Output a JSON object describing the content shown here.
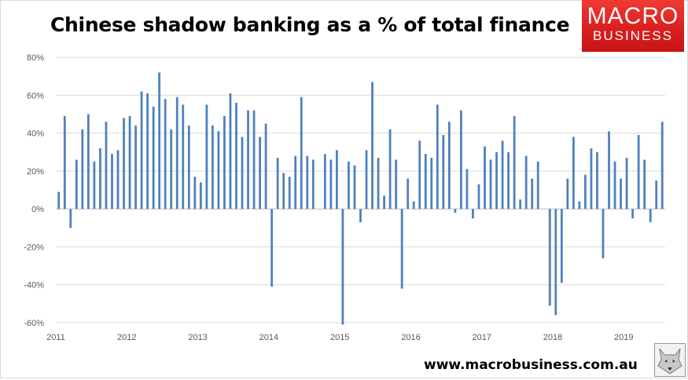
{
  "header": {
    "title": "Chinese shadow banking as a % of total finance"
  },
  "logo": {
    "line1": "MACRO",
    "line2": "BUSINESS"
  },
  "footer": {
    "url": "www.macrobusiness.com.au"
  },
  "colors": {
    "bar": "#4f81bd",
    "logo_red": "#e02b27",
    "grid": "#d9d9d9"
  },
  "chart_data": {
    "type": "bar",
    "title": "Chinese shadow banking as a % of total finance",
    "xlabel": "",
    "ylabel": "",
    "ylim": [
      -60,
      80
    ],
    "y_ticks": [
      80,
      60,
      40,
      20,
      0,
      -20,
      -40,
      -60
    ],
    "y_tick_labels": [
      "80%",
      "60%",
      "40%",
      "20%",
      "0%",
      "-20%",
      "-40%",
      "-60%"
    ],
    "x_tick_labels": [
      "2011",
      "2012",
      "2013",
      "2014",
      "2015",
      "2016",
      "2017",
      "2018",
      "2019"
    ],
    "grid": true,
    "frequency": "monthly",
    "values": [
      9,
      49,
      -10,
      26,
      42,
      50,
      25,
      32,
      46,
      29,
      31,
      48,
      49,
      44,
      62,
      61,
      54,
      72,
      58,
      42,
      59,
      55,
      44,
      17,
      14,
      55,
      44,
      41,
      49,
      61,
      56,
      38,
      52,
      52,
      38,
      45,
      -41,
      27,
      19,
      17,
      28,
      59,
      28,
      26,
      0,
      29,
      26,
      31,
      -61,
      25,
      23,
      -7,
      31,
      67,
      27,
      7,
      42,
      26,
      -42,
      16,
      4,
      36,
      29,
      27,
      55,
      39,
      46,
      -2,
      52,
      21,
      -5,
      13,
      33,
      26,
      30,
      36,
      30,
      49,
      5,
      28,
      16,
      25,
      0,
      -51,
      -56,
      -39,
      16,
      38,
      4,
      18,
      32,
      30,
      -26,
      41,
      25,
      16,
      27,
      -5,
      39,
      26,
      -7,
      15,
      46
    ]
  }
}
